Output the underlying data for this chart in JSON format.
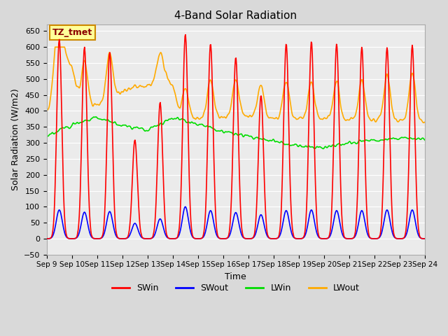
{
  "title": "4-Band Solar Radiation",
  "xlabel": "Time",
  "ylabel": "Solar Radiation (W/m2)",
  "ylim": [
    -50,
    670
  ],
  "background_color": "#d9d9d9",
  "plot_bg_color": "#ebebeb",
  "grid_color": "#ffffff",
  "annotation_text": "TZ_tmet",
  "annotation_bg": "#ffff99",
  "annotation_border": "#cc8800",
  "colors": {
    "SWin": "#ff0000",
    "SWout": "#0000ff",
    "LWin": "#00dd00",
    "LWout": "#ffaa00"
  },
  "linewidths": {
    "SWin": 1.2,
    "SWout": 1.2,
    "LWin": 1.2,
    "LWout": 1.2
  },
  "n_days": 15,
  "start_day": 9,
  "x_tick_labels": [
    "Sep 9",
    "Sep 10",
    "Sep 11",
    "Sep 12",
    "Sep 13",
    "Sep 14",
    "Sep 15",
    "Sep 16",
    "Sep 17",
    "Sep 18",
    "Sep 19",
    "Sep 20",
    "Sep 21",
    "Sep 22",
    "Sep 23",
    "Sep 24"
  ],
  "sw_peaks": [
    625,
    600,
    585,
    310,
    425,
    640,
    610,
    570,
    450,
    610,
    615,
    610,
    600,
    600,
    605
  ],
  "sw_out_peaks": [
    90,
    83,
    85,
    48,
    62,
    100,
    88,
    82,
    75,
    88,
    90,
    88,
    88,
    90,
    90
  ],
  "lw_base_x": [
    0,
    1,
    2,
    3,
    4,
    5,
    6,
    7,
    8,
    9,
    10,
    11,
    12,
    13,
    14,
    15
  ],
  "lw_base_y": [
    318,
    360,
    380,
    355,
    340,
    380,
    360,
    335,
    320,
    305,
    290,
    285,
    300,
    308,
    315,
    310
  ],
  "lwout_base_x": [
    0,
    0.1,
    0.4,
    0.6,
    1.0,
    1.3,
    1.6,
    2.0,
    2.5,
    3.0,
    3.5,
    4.0,
    4.3,
    4.6,
    5.0,
    5.3,
    5.6,
    6.0,
    6.5,
    7.0,
    8.0,
    9.0,
    10.0,
    11.0,
    12.0,
    13.0,
    14.0,
    15.0
  ],
  "lwout_base_y": [
    405,
    405,
    575,
    575,
    540,
    430,
    415,
    420,
    435,
    460,
    475,
    480,
    500,
    520,
    480,
    385,
    380,
    380,
    380,
    380,
    385,
    375,
    375,
    375,
    370,
    368,
    368,
    365
  ],
  "figsize": [
    6.4,
    4.8
  ],
  "dpi": 100
}
